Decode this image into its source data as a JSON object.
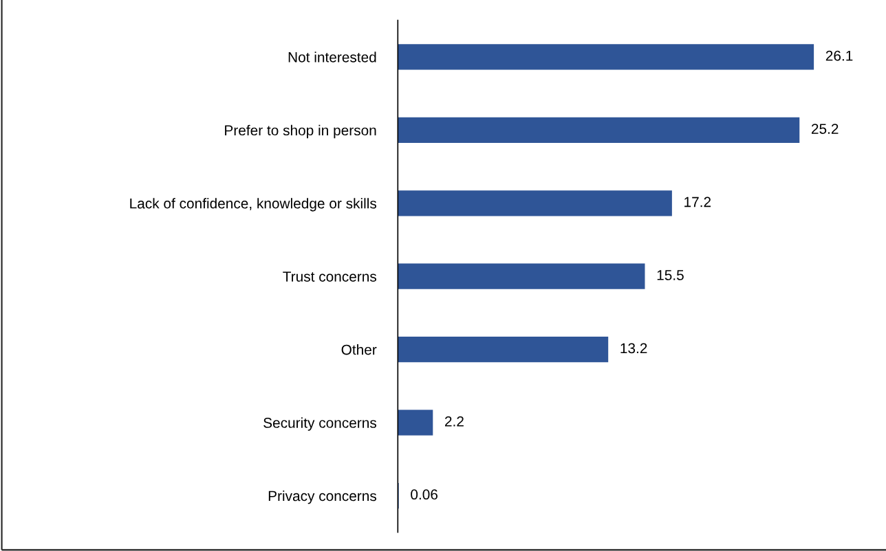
{
  "chart_data": {
    "type": "bar",
    "orientation": "horizontal",
    "categories": [
      "Not interested",
      "Prefer to shop in person",
      "Lack of confidence, knowledge or skills",
      "Trust concerns",
      "Other",
      "Security concerns",
      "Privacy concerns"
    ],
    "values": [
      26.1,
      25.2,
      17.2,
      15.5,
      13.2,
      2.2,
      0.06
    ],
    "color": "#2f5597",
    "data_labels": true,
    "tick_labels": "y"
  }
}
